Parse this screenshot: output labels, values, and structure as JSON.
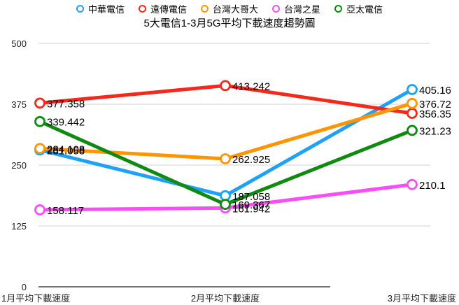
{
  "chart_data": {
    "type": "line",
    "title": "5大電信1-3月5G平均下載速度趨勢圖",
    "xlabel": "",
    "ylabel": "",
    "categories": [
      "1月平均下載速度",
      "2月平均下載速度",
      "3月平均下載速度"
    ],
    "ylim": [
      0,
      500
    ],
    "yticks": [
      0,
      125,
      250,
      375,
      500
    ],
    "grid": true,
    "legend_position": "top",
    "series": [
      {
        "name": "中華電信",
        "color": "#1EA1F7",
        "values": [
          281.058,
          187.058,
          405.16
        ],
        "labels": [
          "281.058",
          "187.058",
          "405.16"
        ]
      },
      {
        "name": "遠傳電信",
        "color": "#F5291B",
        "values": [
          377.358,
          413.242,
          356.35
        ],
        "labels": [
          "377.358",
          "413.242",
          "356.35"
        ]
      },
      {
        "name": "台灣大哥大",
        "color": "#FF9503",
        "values": [
          284.108,
          262.925,
          376.72
        ],
        "labels": [
          "284.108",
          "262.925",
          "376.72"
        ]
      },
      {
        "name": "台灣之星",
        "color": "#F94EF7",
        "values": [
          158.117,
          161.942,
          210.1
        ],
        "labels": [
          "158.117",
          "161.942",
          "210.1"
        ]
      },
      {
        "name": "亞太電信",
        "color": "#108A10",
        "values": [
          339.442,
          169.367,
          321.23
        ],
        "labels": [
          "339.442",
          "169.367",
          "321.23"
        ]
      }
    ]
  }
}
